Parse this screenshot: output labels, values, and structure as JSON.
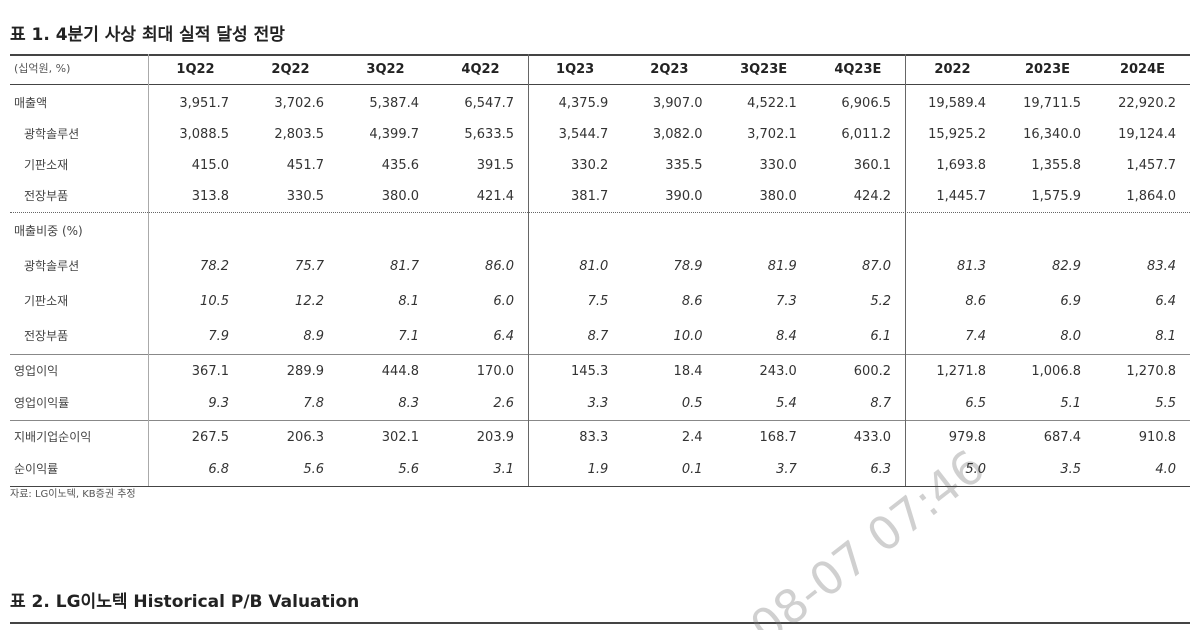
{
  "table1": {
    "title": "표 1. 4분기 사상 최대 실적 달성 전망",
    "header": [
      "(십억원, %)",
      "1Q22",
      "2Q22",
      "3Q22",
      "4Q22",
      "1Q23",
      "2Q23",
      "3Q23E",
      "4Q23E",
      "2022",
      "2023E",
      "2024E"
    ],
    "sections": [
      {
        "rows": [
          {
            "label": "매출액",
            "values": [
              "3,951.7",
              "3,702.6",
              "5,387.4",
              "6,547.7",
              "4,375.9",
              "3,907.0",
              "4,522.1",
              "6,906.5",
              "19,589.4",
              "19,711.5",
              "22,920.2"
            ]
          },
          {
            "label": "광학솔루션",
            "indent": true,
            "values": [
              "3,088.5",
              "2,803.5",
              "4,399.7",
              "5,633.5",
              "3,544.7",
              "3,082.0",
              "3,702.1",
              "6,011.2",
              "15,925.2",
              "16,340.0",
              "19,124.4"
            ]
          },
          {
            "label": "기판소재",
            "indent": true,
            "values": [
              "415.0",
              "451.7",
              "435.6",
              "391.5",
              "330.2",
              "335.5",
              "330.0",
              "360.1",
              "1,693.8",
              "1,355.8",
              "1,457.7"
            ]
          },
          {
            "label": "전장부품",
            "indent": true,
            "values": [
              "313.8",
              "330.5",
              "380.0",
              "421.4",
              "381.7",
              "390.0",
              "380.0",
              "424.2",
              "1,445.7",
              "1,575.9",
              "1,864.0"
            ]
          }
        ]
      },
      {
        "rows": [
          {
            "label": "매출비중 (%)",
            "values": []
          },
          {
            "label": "광학솔루션",
            "indent": true,
            "italic": true,
            "values": [
              "78.2",
              "75.7",
              "81.7",
              "86.0",
              "81.0",
              "78.9",
              "81.9",
              "87.0",
              "81.3",
              "82.9",
              "83.4"
            ]
          },
          {
            "label": "기판소재",
            "indent": true,
            "italic": true,
            "values": [
              "10.5",
              "12.2",
              "8.1",
              "6.0",
              "7.5",
              "8.6",
              "7.3",
              "5.2",
              "8.6",
              "6.9",
              "6.4"
            ]
          },
          {
            "label": "전장부품",
            "indent": true,
            "italic": true,
            "values": [
              "7.9",
              "8.9",
              "7.1",
              "6.4",
              "8.7",
              "10.0",
              "8.4",
              "6.1",
              "7.4",
              "8.0",
              "8.1"
            ]
          }
        ]
      },
      {
        "rows": [
          {
            "label": "영업이익",
            "values": [
              "367.1",
              "289.9",
              "444.8",
              "170.0",
              "145.3",
              "18.4",
              "243.0",
              "600.2",
              "1,271.8",
              "1,006.8",
              "1,270.8"
            ]
          },
          {
            "label": "영업이익률",
            "italic": true,
            "values": [
              "9.3",
              "7.8",
              "8.3",
              "2.6",
              "3.3",
              "0.5",
              "5.4",
              "8.7",
              "6.5",
              "5.1",
              "5.5"
            ]
          }
        ]
      },
      {
        "rows": [
          {
            "label": "지배기업순이익",
            "values": [
              "267.5",
              "206.3",
              "302.1",
              "203.9",
              "83.3",
              "2.4",
              "168.7",
              "433.0",
              "979.8",
              "687.4",
              "910.8"
            ]
          },
          {
            "label": "순이익률",
            "italic": true,
            "values": [
              "6.8",
              "5.6",
              "5.6",
              "3.1",
              "1.9",
              "0.1",
              "3.7",
              "6.3",
              "5.0",
              "3.5",
              "4.0"
            ]
          }
        ]
      }
    ],
    "source": "자료: LG이노텍, KB증권 추정"
  },
  "watermark": "08-07 07:46",
  "table2": {
    "title": "표 2. LG이노텍 Historical P/B Valuation"
  }
}
